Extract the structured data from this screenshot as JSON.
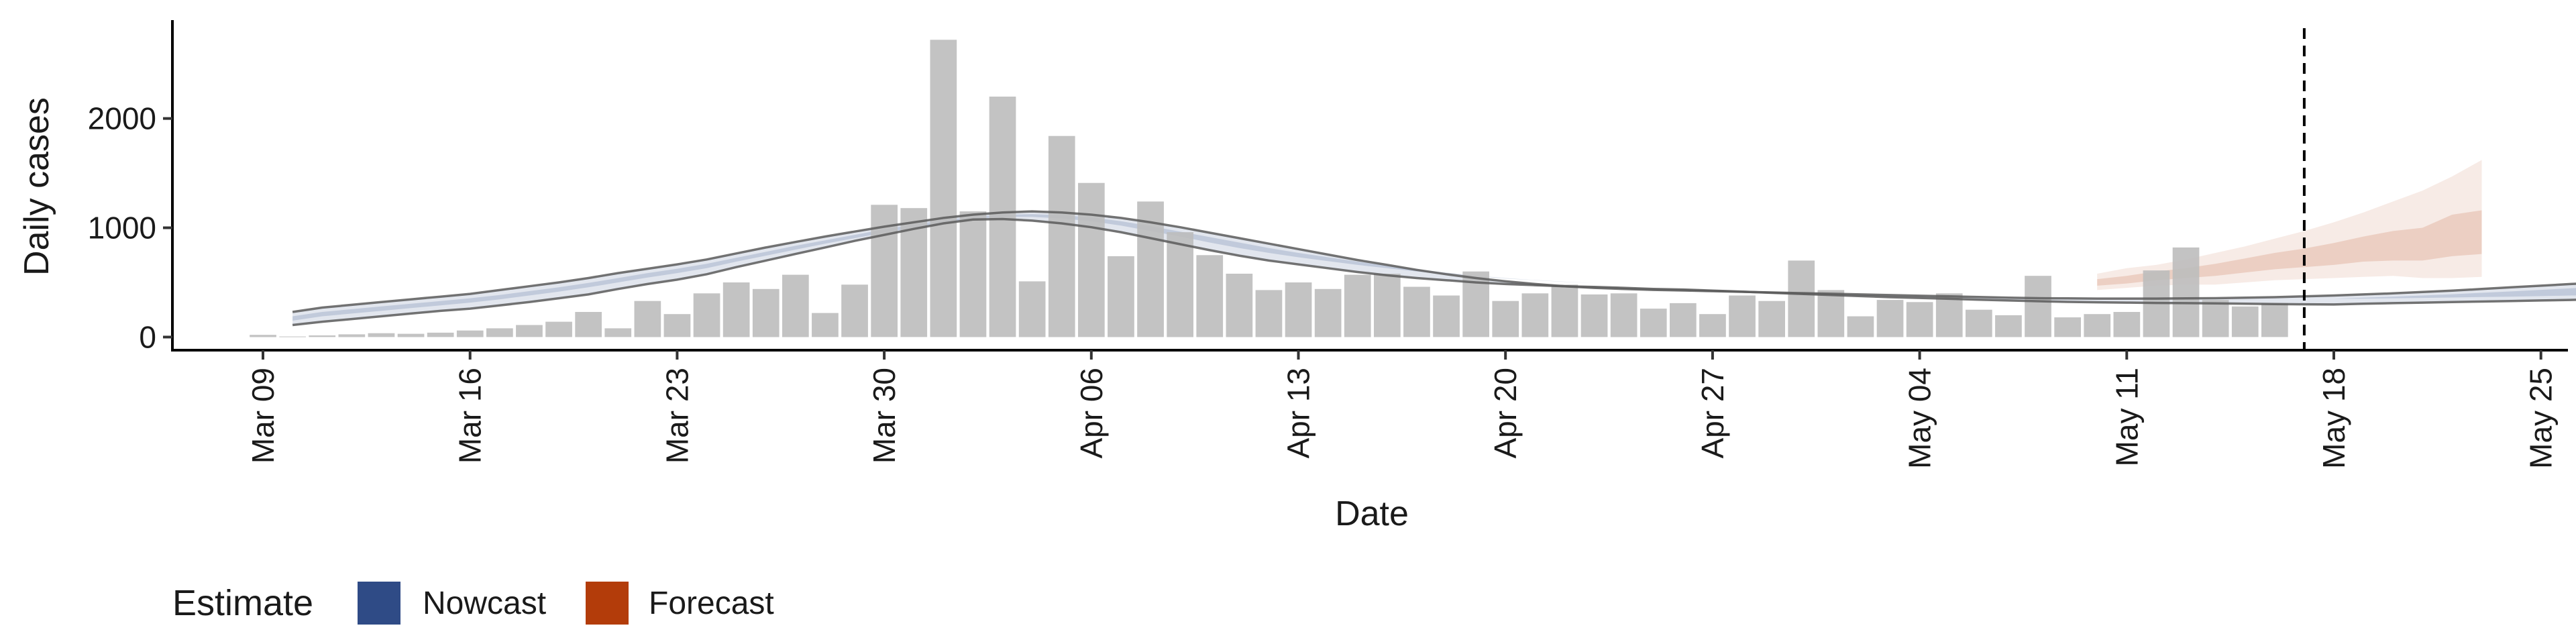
{
  "chart_data": {
    "type": "bar",
    "title": "",
    "xlabel": "Date",
    "ylabel": "Daily cases",
    "start_date": "2020-03-09",
    "x_ticks": [
      "Mar 09",
      "Mar 16",
      "Mar 23",
      "Mar 30",
      "Apr 06",
      "Apr 13",
      "Apr 20",
      "Apr 27",
      "May 04",
      "May 11",
      "May 18",
      "May 25"
    ],
    "y_ticks": [
      0,
      1000,
      2000
    ],
    "ylim": [
      -120,
      2900
    ],
    "grid": false,
    "bar_color": "#bdbdbd",
    "cutoff_date": "2020-05-17",
    "bars": [
      20,
      5,
      15,
      25,
      35,
      30,
      40,
      60,
      80,
      110,
      140,
      230,
      80,
      330,
      210,
      400,
      500,
      440,
      570,
      220,
      480,
      1210,
      1180,
      2720,
      1150,
      2200,
      510,
      1840,
      1410,
      740,
      1240,
      960,
      750,
      580,
      430,
      500,
      440,
      570,
      580,
      460,
      380,
      600,
      330,
      400,
      480,
      390,
      400,
      260,
      310,
      210,
      380,
      330,
      700,
      430,
      190,
      340,
      320,
      400,
      250,
      200,
      560,
      180,
      210,
      230,
      610,
      820,
      340,
      280,
      310
    ],
    "nowcast": {
      "color": "#2f4b86",
      "start_day": 1,
      "outer_low": [
        110,
        140,
        165,
        190,
        215,
        240,
        260,
        290,
        320,
        355,
        390,
        440,
        485,
        525,
        575,
        640,
        700,
        760,
        820,
        880,
        935,
        990,
        1040,
        1075,
        1080,
        1065,
        1040,
        1005,
        960,
        905,
        850,
        795,
        745,
        700,
        665,
        630,
        595,
        565,
        540,
        520,
        500,
        485,
        475,
        465,
        458,
        450,
        440,
        435,
        425,
        415,
        405,
        395,
        385,
        375,
        365,
        358,
        350,
        342,
        335,
        328,
        322,
        318,
        315,
        312,
        310,
        308,
        305,
        302,
        300,
        298,
        305,
        310,
        315,
        320,
        325,
        330,
        335,
        340,
        345,
        350
      ],
      "outer_high": [
        230,
        270,
        295,
        320,
        345,
        370,
        395,
        430,
        465,
        500,
        540,
        585,
        625,
        665,
        710,
        765,
        820,
        870,
        920,
        965,
        1010,
        1050,
        1090,
        1120,
        1140,
        1150,
        1140,
        1120,
        1090,
        1050,
        1005,
        955,
        905,
        855,
        805,
        755,
        705,
        660,
        615,
        575,
        540,
        510,
        485,
        465,
        450,
        440,
        432,
        426,
        420,
        414,
        408,
        402,
        396,
        390,
        384,
        378,
        372,
        366,
        360,
        356,
        354,
        352,
        352,
        352,
        354,
        356,
        360,
        365,
        372,
        380,
        390,
        400,
        412,
        425,
        440,
        455,
        470,
        485,
        500,
        520
      ],
      "inner_low": [
        150,
        190,
        215,
        240,
        265,
        290,
        315,
        345,
        380,
        415,
        455,
        500,
        545,
        585,
        630,
        690,
        745,
        800,
        855,
        905,
        955,
        1000,
        1045,
        1080,
        1100,
        1100,
        1085,
        1060,
        1020,
        970,
        920,
        865,
        815,
        770,
        730,
        695,
        660,
        630,
        600,
        575,
        555,
        535,
        520,
        505,
        495,
        487,
        480,
        472,
        464,
        456,
        448,
        440,
        432,
        424,
        416,
        408,
        400,
        392,
        385,
        378,
        372,
        368,
        365,
        362,
        360,
        358,
        356,
        354,
        352,
        350,
        352,
        355,
        358,
        362,
        366,
        370,
        375,
        380,
        385,
        390
      ],
      "inner_high": [
        190,
        230,
        255,
        280,
        305,
        330,
        355,
        385,
        420,
        455,
        495,
        540,
        585,
        625,
        670,
        725,
        780,
        835,
        885,
        935,
        985,
        1030,
        1070,
        1100,
        1120,
        1125,
        1115,
        1095,
        1060,
        1015,
        965,
        915,
        865,
        815,
        770,
        730,
        690,
        655,
        620,
        590,
        562,
        540,
        522,
        507,
        495,
        487,
        480,
        472,
        464,
        456,
        448,
        440,
        432,
        424,
        416,
        408,
        400,
        392,
        385,
        378,
        372,
        368,
        365,
        362,
        360,
        358,
        356,
        354,
        352,
        350,
        360,
        370,
        380,
        392,
        405,
        418,
        432,
        446,
        460,
        475
      ]
    },
    "forecast": {
      "color": "#b33c0a",
      "start_day": 62,
      "outer_low": [
        430,
        450,
        470,
        480,
        480,
        500,
        520,
        530,
        540,
        550,
        560,
        540,
        540,
        550
      ],
      "outer_high": [
        580,
        630,
        660,
        710,
        770,
        830,
        900,
        970,
        1050,
        1140,
        1240,
        1340,
        1470,
        1620
      ],
      "inner_low": [
        470,
        490,
        520,
        540,
        560,
        590,
        620,
        640,
        660,
        690,
        700,
        700,
        740,
        760
      ],
      "inner_high": [
        530,
        560,
        600,
        630,
        670,
        720,
        770,
        810,
        860,
        920,
        970,
        1000,
        1120,
        1160
      ]
    },
    "legend": {
      "title": "Estimate",
      "position": "bottom-left",
      "items": [
        {
          "label": "Nowcast",
          "color": "#2f4b86"
        },
        {
          "label": "Forecast",
          "color": "#b33c0a"
        }
      ]
    }
  }
}
